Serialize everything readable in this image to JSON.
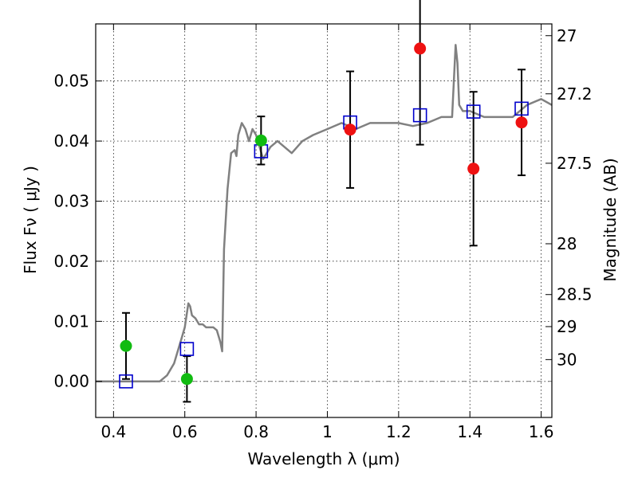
{
  "chart_data": {
    "type": "scatter",
    "xlabel": "Wavelength  λ (μm)",
    "ylabel": "Flux  Fν ( μJy )",
    "y2label": "Magnitude (AB)",
    "xlim": [
      0.35,
      1.63
    ],
    "ylim": [
      -0.006,
      0.0595
    ],
    "x_ticks": [
      0.4,
      0.6,
      0.8,
      1.0,
      1.2,
      1.4,
      1.6
    ],
    "x_tick_labels": [
      "0.4",
      "0.6",
      "0.8",
      "1",
      "1.2",
      "1.4",
      "1.6"
    ],
    "y_ticks": [
      0.0,
      0.01,
      0.02,
      0.03,
      0.04,
      0.05
    ],
    "y_tick_labels": [
      "0.00",
      "0.01",
      "0.02",
      "0.03",
      "0.04",
      "0.05"
    ],
    "y2_ticks": [
      27,
      27.2,
      27.5,
      28,
      28.5,
      29,
      30
    ],
    "y2_tick_labels": [
      "27",
      "27.2",
      "27.5",
      "28",
      "28.5",
      "29",
      "30"
    ],
    "grid": true,
    "colors": {
      "green": "#11bb11",
      "red": "#ee1111",
      "model_box": "#0000cc",
      "sed_line": "#808080",
      "errorbar": "#000000"
    },
    "observed_green": [
      {
        "x": 0.435,
        "y": 0.0059,
        "err": 0.0055
      },
      {
        "x": 0.606,
        "y": 0.0004,
        "err": 0.0038
      },
      {
        "x": 0.814,
        "y": 0.0401,
        "err": 0.004
      }
    ],
    "observed_red": [
      {
        "x": 1.064,
        "y": 0.0419,
        "err": 0.0097
      },
      {
        "x": 1.26,
        "y": 0.0554,
        "err": 0.016
      },
      {
        "x": 1.41,
        "y": 0.0354,
        "err": 0.0128
      },
      {
        "x": 1.545,
        "y": 0.0431,
        "err": 0.0088
      }
    ],
    "model_boxes": [
      {
        "x": 0.435,
        "y": 0.0
      },
      {
        "x": 0.606,
        "y": 0.0054
      },
      {
        "x": 0.814,
        "y": 0.0383
      },
      {
        "x": 1.064,
        "y": 0.0431
      },
      {
        "x": 1.26,
        "y": 0.0443
      },
      {
        "x": 1.41,
        "y": 0.0449
      },
      {
        "x": 1.545,
        "y": 0.0454
      }
    ],
    "sed_line": {
      "x": [
        0.35,
        0.4,
        0.45,
        0.5,
        0.53,
        0.55,
        0.57,
        0.58,
        0.59,
        0.6,
        0.61,
        0.615,
        0.62,
        0.63,
        0.64,
        0.65,
        0.66,
        0.67,
        0.68,
        0.69,
        0.7,
        0.705,
        0.71,
        0.72,
        0.73,
        0.74,
        0.745,
        0.75,
        0.76,
        0.77,
        0.78,
        0.79,
        0.8,
        0.82,
        0.84,
        0.86,
        0.88,
        0.9,
        0.93,
        0.96,
        1.0,
        1.04,
        1.08,
        1.12,
        1.16,
        1.2,
        1.24,
        1.28,
        1.32,
        1.35,
        1.36,
        1.365,
        1.37,
        1.38,
        1.4,
        1.44,
        1.48,
        1.52,
        1.56,
        1.6,
        1.63
      ],
      "y": [
        0.0,
        0.0,
        0.0,
        0.0,
        0.0,
        0.001,
        0.003,
        0.005,
        0.007,
        0.009,
        0.013,
        0.0125,
        0.011,
        0.0105,
        0.0095,
        0.0095,
        0.009,
        0.009,
        0.009,
        0.0085,
        0.0065,
        0.005,
        0.022,
        0.032,
        0.038,
        0.0385,
        0.0375,
        0.041,
        0.043,
        0.042,
        0.04,
        0.042,
        0.041,
        0.037,
        0.039,
        0.04,
        0.039,
        0.038,
        0.04,
        0.041,
        0.042,
        0.043,
        0.042,
        0.043,
        0.043,
        0.043,
        0.0425,
        0.043,
        0.044,
        0.044,
        0.056,
        0.053,
        0.046,
        0.045,
        0.045,
        0.044,
        0.044,
        0.044,
        0.046,
        0.047,
        0.046
      ]
    },
    "zero_line": 0.0
  }
}
